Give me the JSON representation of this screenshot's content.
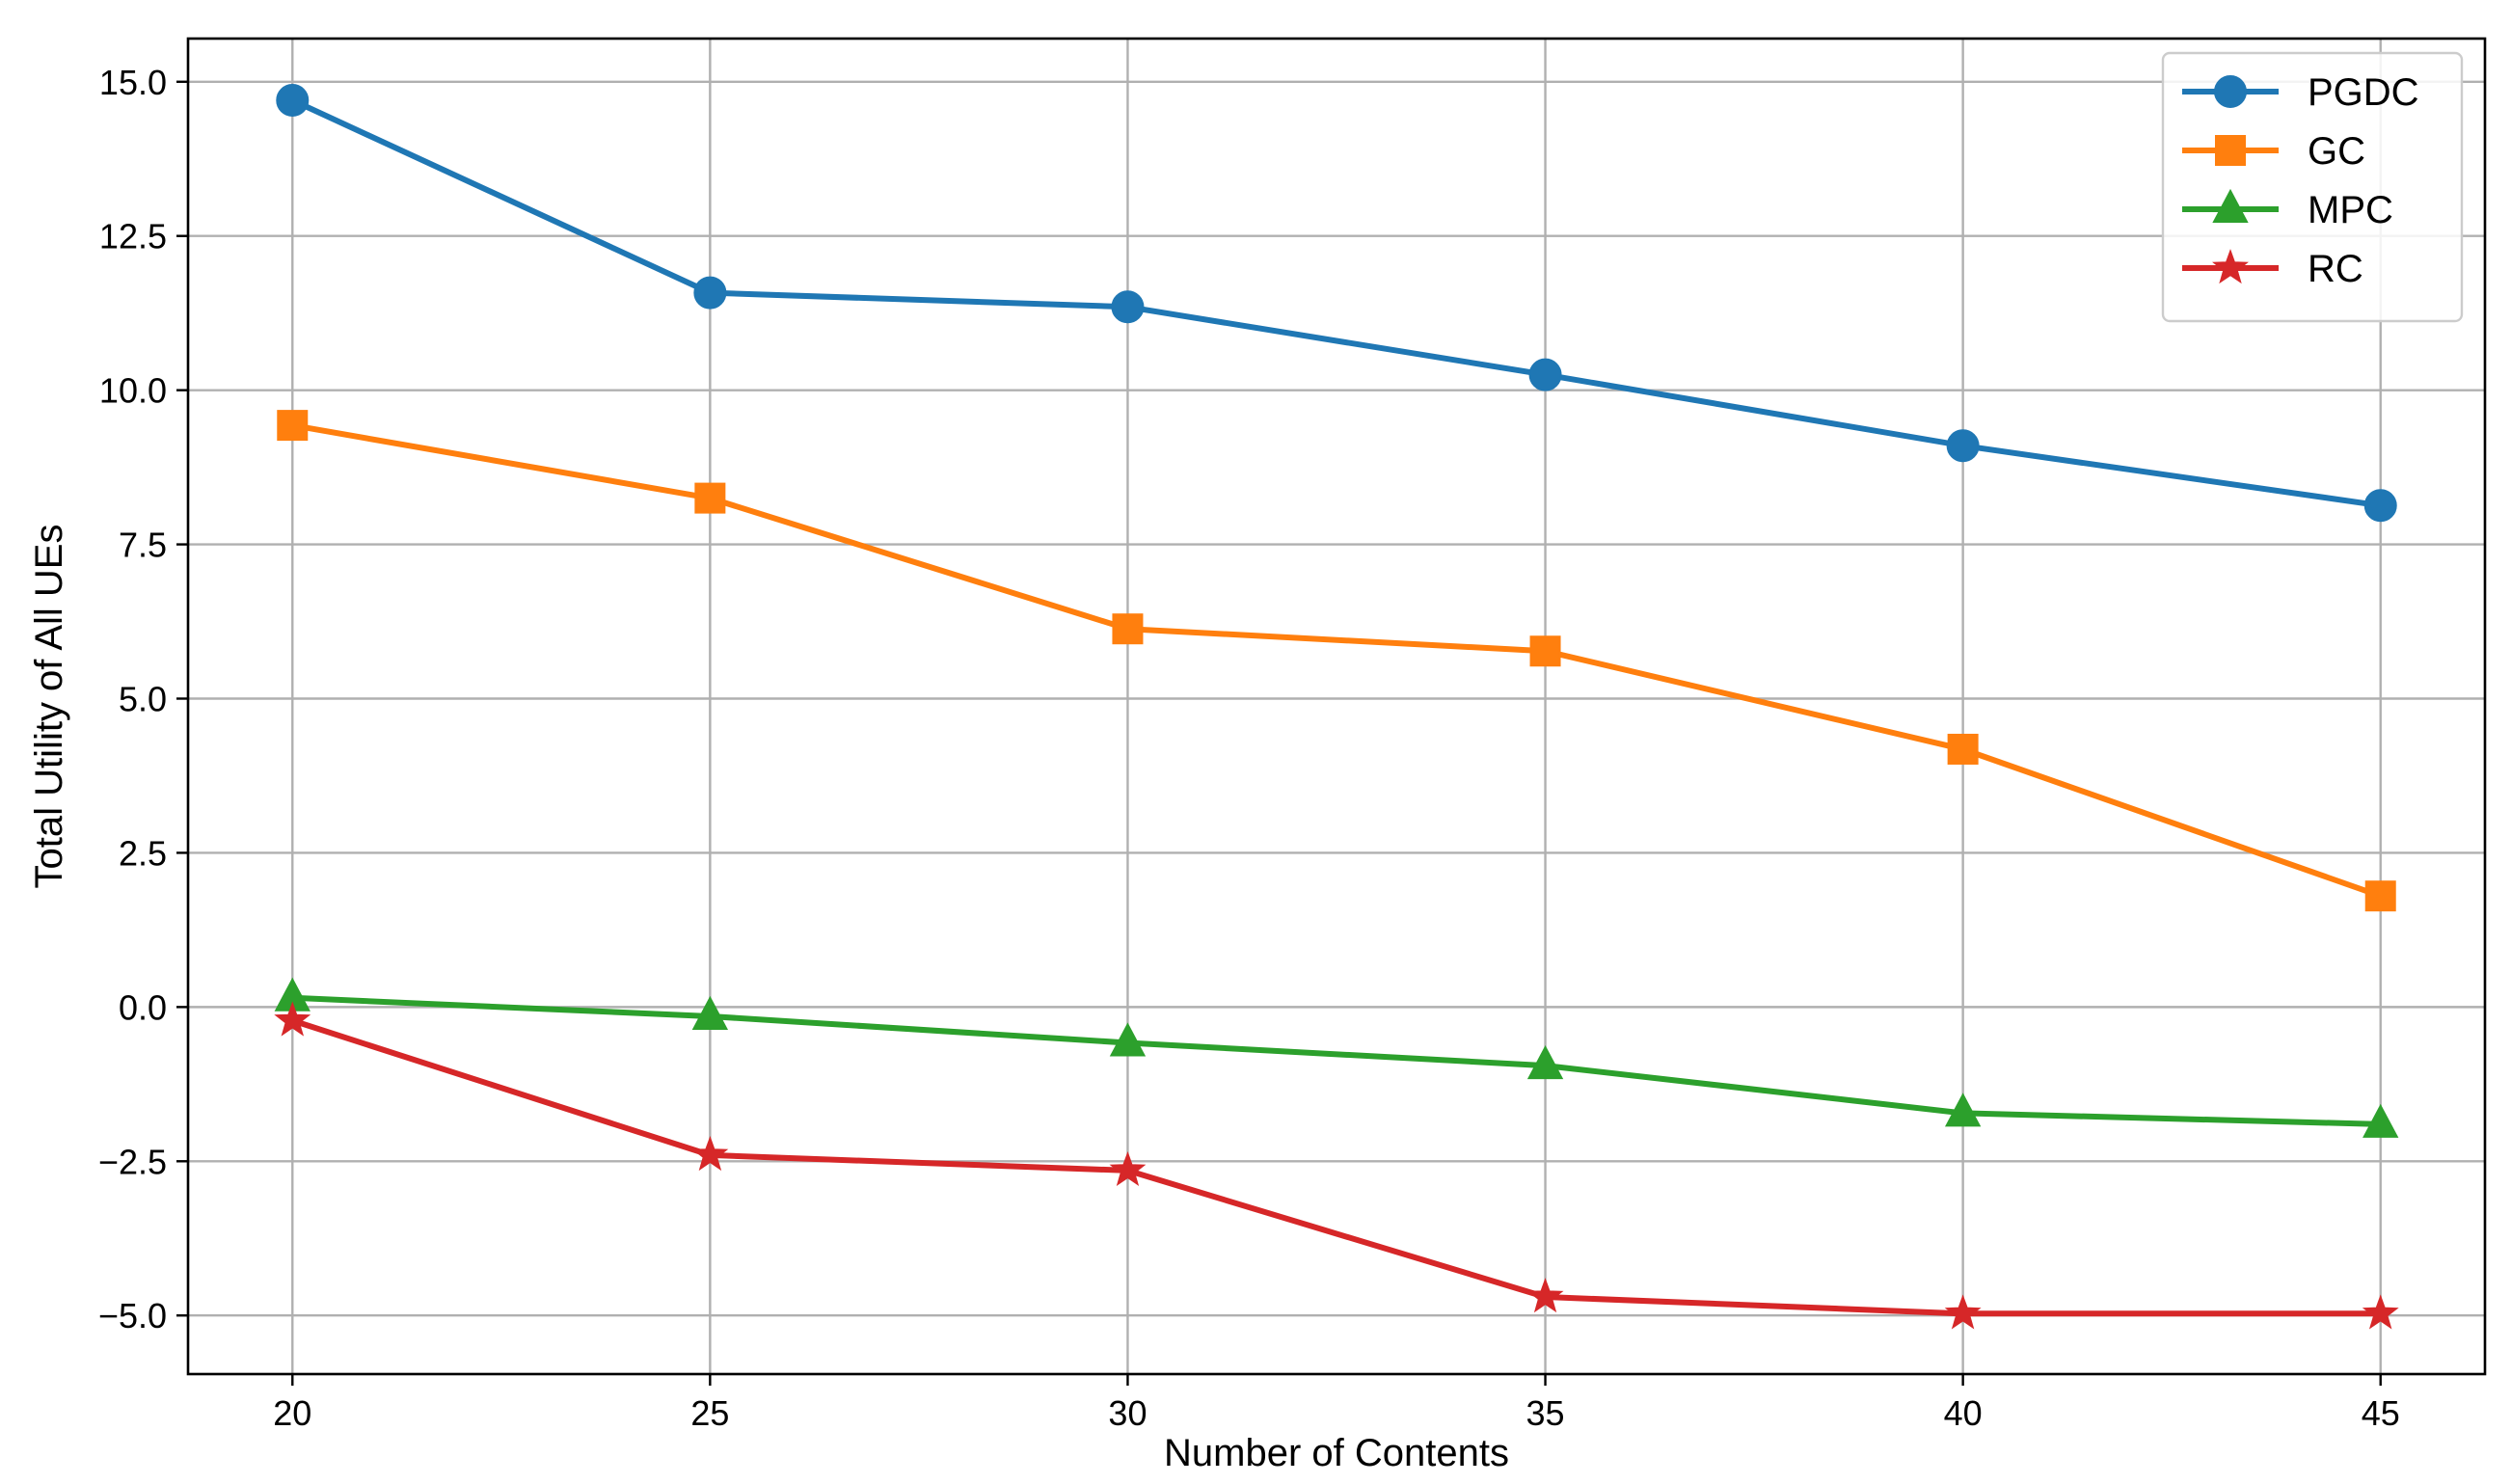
{
  "chart_data": {
    "type": "line",
    "title": "",
    "xlabel": "Number of Contents",
    "ylabel": "Total Utility of All UEs",
    "x": [
      20,
      25,
      30,
      35,
      40,
      45
    ],
    "x_ticks": [
      "20",
      "25",
      "30",
      "35",
      "40",
      "45"
    ],
    "y_ticks": [
      15.0,
      12.5,
      10.0,
      7.5,
      5.0,
      2.5,
      0.0,
      -2.5,
      -5.0
    ],
    "y_tick_labels": [
      "15.0",
      "12.5",
      "10.0",
      "7.5",
      "5.0",
      "2.5",
      "0.0",
      "−2.5",
      "−5.0"
    ],
    "xlim": [
      18.75,
      46.25
    ],
    "ylim": [
      -5.95,
      15.7
    ],
    "grid": true,
    "legend_position": "top-right",
    "series": [
      {
        "name": "PGDC",
        "color": "#1f77b4",
        "marker": "circle",
        "values": [
          14.7,
          11.58,
          11.35,
          10.25,
          9.1,
          8.13
        ]
      },
      {
        "name": "GC",
        "color": "#ff7f0e",
        "marker": "square",
        "values": [
          9.43,
          8.25,
          6.13,
          5.77,
          4.18,
          1.8
        ]
      },
      {
        "name": "MPC",
        "color": "#2ca02c",
        "marker": "triangle",
        "values": [
          0.15,
          -0.15,
          -0.58,
          -0.95,
          -1.72,
          -1.9
        ]
      },
      {
        "name": "RC",
        "color": "#d62728",
        "marker": "star",
        "values": [
          -0.22,
          -2.4,
          -2.65,
          -4.7,
          -4.97,
          -4.97
        ]
      }
    ]
  }
}
